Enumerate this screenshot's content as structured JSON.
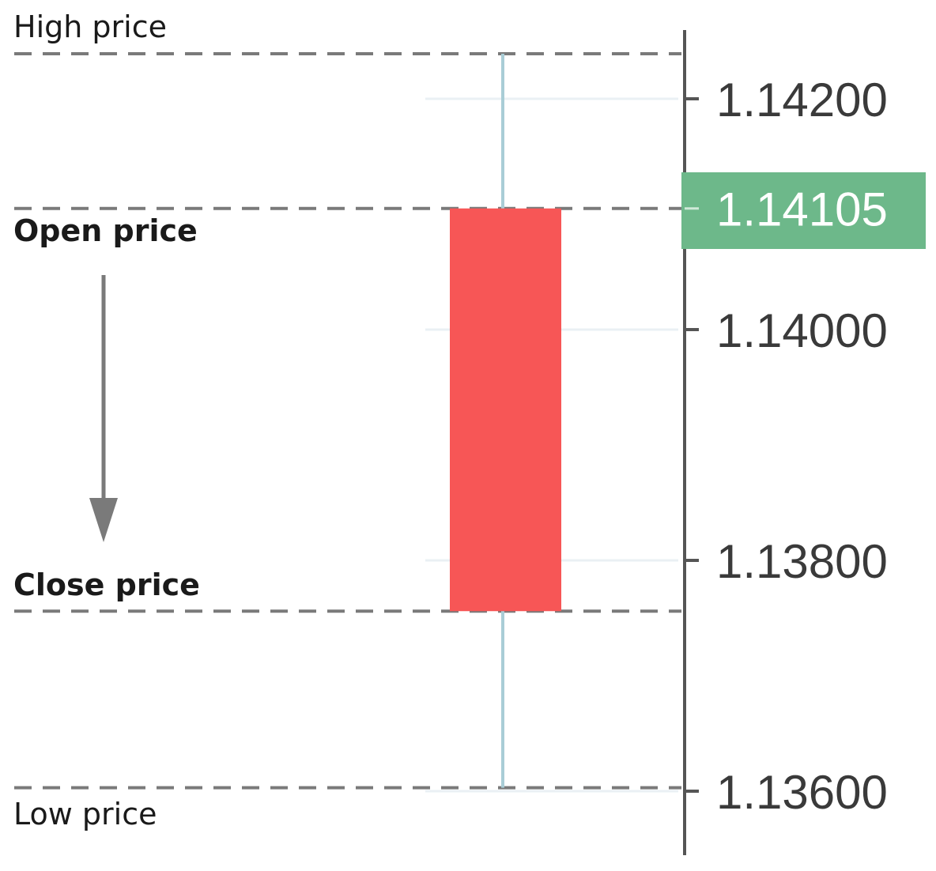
{
  "labels": {
    "high": "High price",
    "open": "Open price",
    "close": "Close price",
    "low": "Low price"
  },
  "chart_data": {
    "type": "candlestick",
    "y_ticks": [
      "1.14200",
      "1.14000",
      "1.13800",
      "1.13600"
    ],
    "y_tick_values": [
      1.142,
      1.14,
      1.138,
      1.136
    ],
    "current_price_label": "1.14105",
    "candle": {
      "open": 1.14105,
      "high": 1.14239,
      "low": 1.13603,
      "close": 1.13756
    },
    "ylim": [
      1.13545,
      1.14285
    ],
    "grid": true,
    "direction": "bearish"
  },
  "colors": {
    "body": "#f75656",
    "wick": "#a9cdd6",
    "price_badge": "#6db88a",
    "guide": "#7a7a7a",
    "axis": "#555555",
    "grid": "#eaf0f4"
  }
}
